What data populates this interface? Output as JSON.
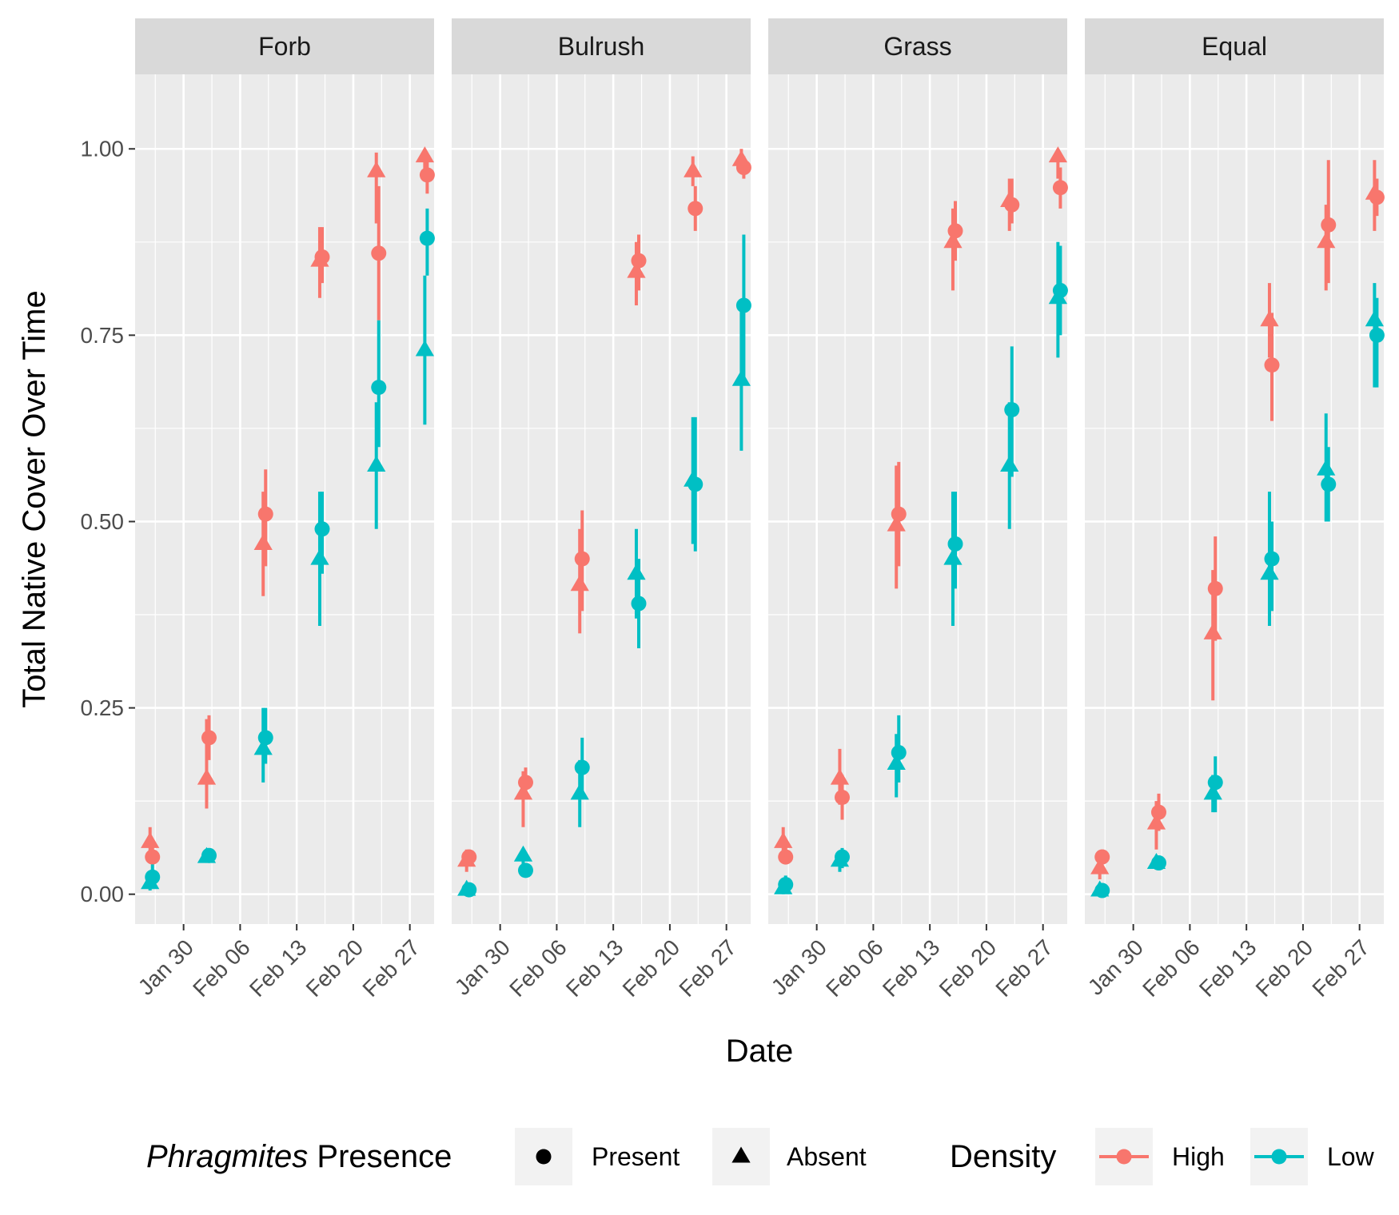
{
  "chart_data": {
    "type": "scatter",
    "facets": [
      "Forb",
      "Bulrush",
      "Grass",
      "Equal"
    ],
    "xlabel": "Date",
    "ylabel": "Total Native Cover Over Time",
    "ylim": [
      -0.04,
      1.1
    ],
    "y_ticks": [
      {
        "value": 0,
        "label": "0.00"
      },
      {
        "value": 0.25,
        "label": "0.25"
      },
      {
        "value": 0.5,
        "label": "0.50"
      },
      {
        "value": 0.75,
        "label": "0.75"
      },
      {
        "value": 1,
        "label": "1.00"
      }
    ],
    "xlim": [
      "Jan 24",
      "Mar 02"
    ],
    "x_ticks": [
      "Jan 30",
      "Feb 06",
      "Feb 13",
      "Feb 20",
      "Feb 27"
    ],
    "x_tick_dates": [
      "2023-01-30",
      "2023-02-06",
      "2023-02-13",
      "2023-02-20",
      "2023-02-27"
    ],
    "sample_dates": [
      "2023-01-26",
      "2023-02-02",
      "2023-02-09",
      "2023-02-16",
      "2023-02-23",
      "2023-03-01"
    ],
    "grid": true,
    "legend_position": "bottom",
    "legends": {
      "shape": {
        "title_italic": "Phragmites",
        "title_rest": " Presence",
        "entries": [
          {
            "label": "Present",
            "shape": "circle"
          },
          {
            "label": "Absent",
            "shape": "triangle"
          }
        ]
      },
      "color": {
        "title": "Density",
        "entries": [
          {
            "label": "High",
            "color": "#F8766D"
          },
          {
            "label": "Low",
            "color": "#00BFC4"
          }
        ]
      }
    },
    "series": [
      {
        "facet": "Forb",
        "density": "High",
        "presence": "Present",
        "values": [
          0.05,
          0.21,
          0.51,
          0.855,
          0.86,
          0.965
        ],
        "lower": [
          0.04,
          0.18,
          0.44,
          0.82,
          0.77,
          0.94
        ],
        "upper": [
          0.07,
          0.24,
          0.57,
          0.895,
          0.95,
          0.99
        ]
      },
      {
        "facet": "Forb",
        "density": "High",
        "presence": "Absent",
        "values": [
          0.07,
          0.155,
          0.47,
          0.85,
          0.97,
          0.99
        ],
        "lower": [
          0.05,
          0.115,
          0.4,
          0.8,
          0.9,
          0.97
        ],
        "upper": [
          0.09,
          0.235,
          0.54,
          0.895,
          0.995,
          1.0
        ]
      },
      {
        "facet": "Forb",
        "density": "Low",
        "presence": "Present",
        "values": [
          0.023,
          0.052,
          0.21,
          0.49,
          0.68,
          0.88
        ],
        "lower": [
          0.008,
          0.045,
          0.175,
          0.43,
          0.6,
          0.83
        ],
        "upper": [
          0.04,
          0.06,
          0.25,
          0.54,
          0.77,
          0.92
        ]
      },
      {
        "facet": "Forb",
        "density": "Low",
        "presence": "Absent",
        "values": [
          0.015,
          0.05,
          0.195,
          0.45,
          0.575,
          0.73
        ],
        "lower": [
          0.005,
          0.042,
          0.15,
          0.36,
          0.49,
          0.63
        ],
        "upper": [
          0.03,
          0.058,
          0.25,
          0.54,
          0.66,
          0.83
        ]
      },
      {
        "facet": "Bulrush",
        "density": "High",
        "presence": "Present",
        "values": [
          0.05,
          0.15,
          0.45,
          0.85,
          0.92,
          0.975
        ],
        "lower": [
          0.04,
          0.13,
          0.38,
          0.81,
          0.89,
          0.96
        ],
        "upper": [
          0.06,
          0.17,
          0.515,
          0.885,
          0.95,
          0.99
        ]
      },
      {
        "facet": "Bulrush",
        "density": "High",
        "presence": "Absent",
        "values": [
          0.045,
          0.135,
          0.415,
          0.835,
          0.97,
          0.985
        ],
        "lower": [
          0.03,
          0.09,
          0.35,
          0.79,
          0.95,
          0.97
        ],
        "upper": [
          0.06,
          0.165,
          0.49,
          0.875,
          0.99,
          1.0
        ]
      },
      {
        "facet": "Bulrush",
        "density": "Low",
        "presence": "Present",
        "values": [
          0.006,
          0.032,
          0.17,
          0.39,
          0.55,
          0.79
        ],
        "lower": [
          0.0,
          0.025,
          0.135,
          0.33,
          0.46,
          0.69
        ],
        "upper": [
          0.012,
          0.04,
          0.21,
          0.45,
          0.64,
          0.885
        ]
      },
      {
        "facet": "Bulrush",
        "density": "Low",
        "presence": "Absent",
        "values": [
          0.006,
          0.052,
          0.135,
          0.43,
          0.555,
          0.69
        ],
        "lower": [
          0.0,
          0.04,
          0.09,
          0.37,
          0.47,
          0.595
        ],
        "upper": [
          0.012,
          0.062,
          0.18,
          0.49,
          0.64,
          0.79
        ]
      },
      {
        "facet": "Grass",
        "density": "High",
        "presence": "Present",
        "values": [
          0.05,
          0.13,
          0.51,
          0.89,
          0.925,
          0.948
        ],
        "lower": [
          0.04,
          0.1,
          0.44,
          0.85,
          0.9,
          0.92
        ],
        "upper": [
          0.065,
          0.16,
          0.58,
          0.93,
          0.96,
          0.975
        ]
      },
      {
        "facet": "Grass",
        "density": "High",
        "presence": "Absent",
        "values": [
          0.07,
          0.155,
          0.495,
          0.875,
          0.93,
          0.99
        ],
        "lower": [
          0.05,
          0.12,
          0.41,
          0.81,
          0.89,
          0.96
        ],
        "upper": [
          0.09,
          0.195,
          0.575,
          0.92,
          0.96,
          1.0
        ]
      },
      {
        "facet": "Grass",
        "density": "Low",
        "presence": "Present",
        "values": [
          0.013,
          0.05,
          0.19,
          0.47,
          0.65,
          0.81
        ],
        "lower": [
          0.003,
          0.035,
          0.15,
          0.41,
          0.56,
          0.75
        ],
        "upper": [
          0.025,
          0.062,
          0.24,
          0.54,
          0.735,
          0.87
        ]
      },
      {
        "facet": "Grass",
        "density": "Low",
        "presence": "Absent",
        "values": [
          0.008,
          0.045,
          0.175,
          0.45,
          0.575,
          0.8
        ],
        "lower": [
          0.0,
          0.03,
          0.13,
          0.36,
          0.49,
          0.72
        ],
        "upper": [
          0.018,
          0.058,
          0.215,
          0.54,
          0.66,
          0.875
        ]
      },
      {
        "facet": "Equal",
        "density": "High",
        "presence": "Present",
        "values": [
          0.05,
          0.11,
          0.41,
          0.71,
          0.898,
          0.935
        ],
        "lower": [
          0.04,
          0.085,
          0.34,
          0.635,
          0.82,
          0.91
        ],
        "upper": [
          0.06,
          0.135,
          0.48,
          0.78,
          0.985,
          0.96
        ]
      },
      {
        "facet": "Equal",
        "density": "High",
        "presence": "Absent",
        "values": [
          0.035,
          0.095,
          0.35,
          0.77,
          0.875,
          0.94
        ],
        "lower": [
          0.02,
          0.06,
          0.26,
          0.72,
          0.81,
          0.89
        ],
        "upper": [
          0.05,
          0.125,
          0.435,
          0.82,
          0.925,
          0.985
        ]
      },
      {
        "facet": "Equal",
        "density": "Low",
        "presence": "Present",
        "values": [
          0.005,
          0.042,
          0.15,
          0.45,
          0.55,
          0.75
        ],
        "lower": [
          0.0,
          0.035,
          0.11,
          0.38,
          0.5,
          0.68
        ],
        "upper": [
          0.01,
          0.05,
          0.185,
          0.5,
          0.6,
          0.8
        ]
      },
      {
        "facet": "Equal",
        "density": "Low",
        "presence": "Absent",
        "values": [
          0.005,
          0.042,
          0.135,
          0.43,
          0.57,
          0.77
        ],
        "lower": [
          0.0,
          0.033,
          0.11,
          0.36,
          0.5,
          0.68
        ],
        "upper": [
          0.01,
          0.05,
          0.16,
          0.54,
          0.645,
          0.82
        ]
      }
    ]
  }
}
